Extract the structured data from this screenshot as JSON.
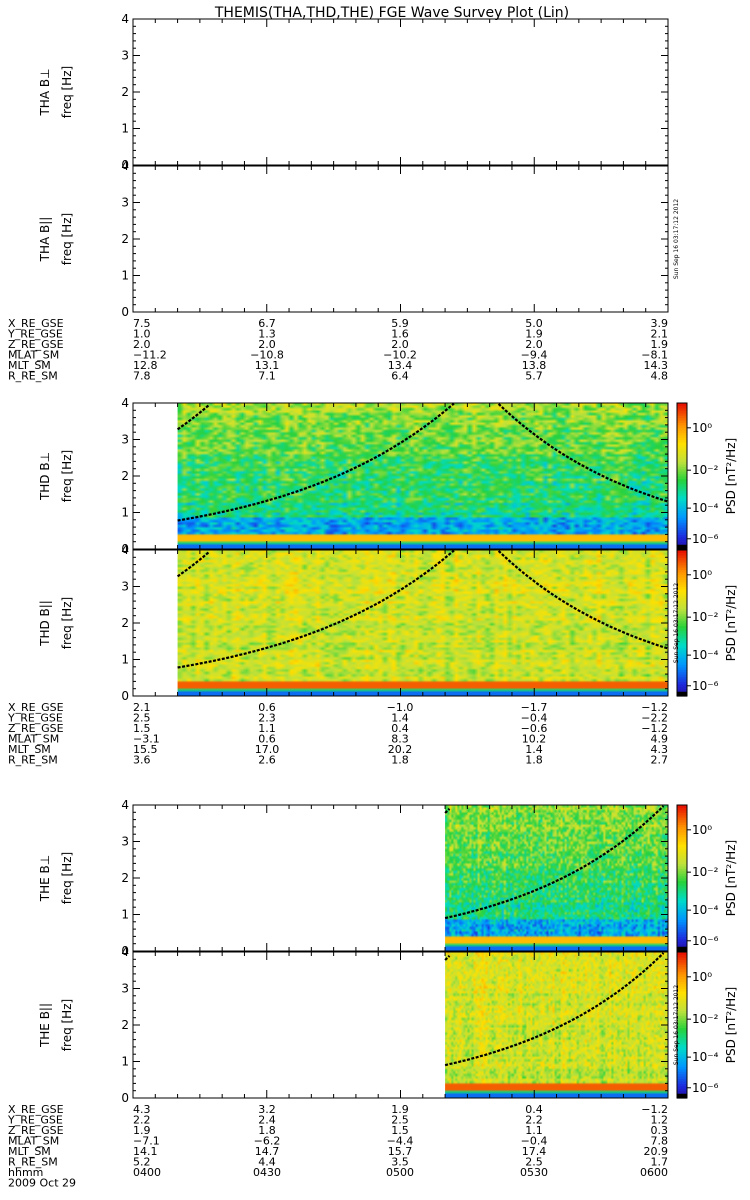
{
  "chart_data": {
    "type": "heatmap",
    "title": "THEMIS(THA,THD,THE) FGE Wave Survey Plot (Lin)",
    "date_label": "2009 Oct 29",
    "time_label": "hhmm",
    "time_ticks": [
      "0400",
      "0430",
      "0500",
      "0530",
      "0600"
    ],
    "time_range": [
      "0400",
      "0600"
    ],
    "freq_ylim": [
      0,
      4
    ],
    "freq_ticks": [
      "0",
      "1",
      "2",
      "3",
      "4"
    ],
    "colorbar": {
      "label": "PSD [nT²/Hz]",
      "scale": "log",
      "ticks": [
        "10⁰",
        "10⁻²",
        "10⁻⁴",
        "10⁻⁶"
      ],
      "colors": [
        "#000000",
        "#5a0090",
        "#2020d0",
        "#0090ff",
        "#00e0c0",
        "#20d040",
        "#c0e040",
        "#ffe000",
        "#ff9000",
        "#ff2000",
        "#c00000"
      ]
    },
    "timestamp": "Sun Sep 16 03:17:12 2012",
    "probes": [
      {
        "id": "THA",
        "panels": [
          {
            "label": "THA B⊥",
            "ylabel": "freq [Hz]",
            "has_data": false
          },
          {
            "label": "THA B||",
            "ylabel": "freq [Hz]",
            "has_data": false
          }
        ],
        "ephemeris_labels": [
          "X_RE_GSE",
          "Y_RE_GSE",
          "Z_RE_GSE",
          "MLAT_SM",
          "MLT_SM",
          "R_RE_SM"
        ],
        "ephemeris": [
          [
            "7.5",
            "6.7",
            "5.9",
            "5.0",
            "3.9"
          ],
          [
            "1.0",
            "1.3",
            "1.6",
            "1.9",
            "2.1"
          ],
          [
            "2.0",
            "2.0",
            "2.0",
            "2.0",
            "1.9"
          ],
          [
            "−11.2",
            "−10.8",
            "−10.2",
            "−9.4",
            "−8.1"
          ],
          [
            "12.8",
            "13.1",
            "13.4",
            "13.8",
            "14.3"
          ],
          [
            "7.8",
            "7.1",
            "6.4",
            "5.7",
            "4.8"
          ]
        ]
      },
      {
        "id": "THD",
        "panels": [
          {
            "label": "THD B⊥",
            "ylabel": "freq [Hz]",
            "has_data": true,
            "data_start": "0410",
            "data_end": "0600"
          },
          {
            "label": "THD B||",
            "ylabel": "freq [Hz]",
            "has_data": true,
            "data_start": "0410",
            "data_end": "0600"
          }
        ],
        "ephemeris_labels": [
          "X_RE_GSE",
          "Y_RE_GSE",
          "Z_RE_GSE",
          "MLAT_SM",
          "MLT_SM",
          "R_RE_SM"
        ],
        "ephemeris": [
          [
            "2.1",
            "0.6",
            "−1.0",
            "−1.7",
            "−1.2"
          ],
          [
            "2.5",
            "2.3",
            "1.4",
            "−0.4",
            "−2.2"
          ],
          [
            "1.5",
            "1.1",
            "0.4",
            "−0.6",
            "−1.2"
          ],
          [
            "−3.1",
            "0.6",
            "8.3",
            "10.2",
            "4.9"
          ],
          [
            "15.5",
            "17.0",
            "20.2",
            "1.4",
            "4.3"
          ],
          [
            "3.6",
            "2.6",
            "1.8",
            "1.8",
            "2.7"
          ]
        ]
      },
      {
        "id": "THE",
        "panels": [
          {
            "label": "THE B⊥",
            "ylabel": "freq [Hz]",
            "has_data": true,
            "data_start": "0510",
            "data_end": "0600"
          },
          {
            "label": "THE B||",
            "ylabel": "freq [Hz]",
            "has_data": true,
            "data_start": "0510",
            "data_end": "0600"
          }
        ],
        "ephemeris_labels": [
          "X_RE_GSE",
          "Y_RE_GSE",
          "Z_RE_GSE",
          "MLAT_SM",
          "MLT_SM",
          "R_RE_SM"
        ],
        "ephemeris": [
          [
            "4.3",
            "3.2",
            "1.9",
            "0.4",
            "−1.2"
          ],
          [
            "2.2",
            "2.4",
            "2.5",
            "2.2",
            "1.2"
          ],
          [
            "1.9",
            "1.8",
            "1.5",
            "1.1",
            "0.3"
          ],
          [
            "−7.1",
            "−6.2",
            "−4.4",
            "−0.4",
            "7.8"
          ],
          [
            "14.1",
            "14.7",
            "15.7",
            "17.4",
            "20.9"
          ],
          [
            "5.2",
            "4.4",
            "3.5",
            "2.5",
            "1.7"
          ]
        ]
      }
    ]
  }
}
